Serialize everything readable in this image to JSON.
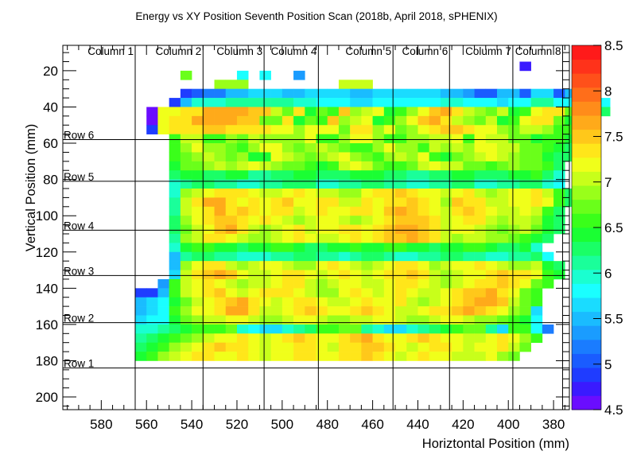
{
  "chart_data": {
    "type": "heatmap",
    "title": "Energy vs XY Position Seventh Position Scan (2018b, April 2018, sPHENIX)",
    "xlabel": "Horiztontal Position (mm)",
    "ylabel": "Vertical Position (mm)",
    "xlim": [
      597,
      373
    ],
    "ylim": [
      6,
      207
    ],
    "x_reversed": true,
    "y_reversed": true,
    "x_ticks": [
      580,
      560,
      540,
      520,
      500,
      480,
      460,
      440,
      420,
      400,
      380
    ],
    "y_ticks": [
      20,
      40,
      60,
      80,
      100,
      120,
      140,
      160,
      180,
      200
    ],
    "zlim": [
      4.5,
      8.5
    ],
    "z_ticks": [
      4.5,
      5,
      5.5,
      6,
      6.5,
      7,
      7.5,
      8,
      8.5
    ],
    "palette": [
      "#6a0dff",
      "#3a1aff",
      "#1f3cff",
      "#1a5cff",
      "#1a7cff",
      "#1a9cff",
      "#1abcff",
      "#1adcff",
      "#1affff",
      "#1affd0",
      "#1aff9a",
      "#1aff66",
      "#1aff33",
      "#3aff1a",
      "#6aff1a",
      "#99ff1a",
      "#c8ff1a",
      "#f0ff1a",
      "#ffe61a",
      "#ffc81a",
      "#ffaa1a",
      "#ff8c1a",
      "#ff6e1a",
      "#ff501a",
      "#ff321a",
      "#ff1a1a"
    ],
    "cell_size_mm": 5,
    "columns": [
      {
        "label": "Column 1",
        "x": 565
      },
      {
        "label": "Column 2",
        "x": 535
      },
      {
        "label": "Column 3",
        "x": 508
      },
      {
        "label": "Column 4",
        "x": 484
      },
      {
        "label": "Column 5",
        "x": 451
      },
      {
        "label": "Column 6",
        "x": 426
      },
      {
        "label": "Column 7",
        "x": 398
      },
      {
        "label": "Column 8",
        "x": 376
      }
    ],
    "rows": [
      {
        "label": "Row 6",
        "y": 58
      },
      {
        "label": "Row 5",
        "y": 81
      },
      {
        "label": "Row 4",
        "y": 108
      },
      {
        "label": "Row 3",
        "y": 133
      },
      {
        "label": "Row 2",
        "y": 159
      },
      {
        "label": "Row 1",
        "y": 184
      }
    ],
    "grid_x_start": 595,
    "grid_y_start": 10,
    "grid": [
      "                                                  ",
      "                                        B         ",
      "          O    I I  F                              ",
      "             PPP        QQQ                         ",
      "          CDEEGGHHHGGHHHHGGHHHHHHGGFDDGGDHHDGG    ",
      "         CGJJJKKKKKKJJIIIHHIIIIIIJJIIIHIIKKIIHII  ",
      "       ARRSSUUUUTTQOSMONTPQRMNPRTUSQPOQMNRSSOMLL  ",
      "       ARSSUUUUTTOOSMONTPQRMNPRTUSQPOQMNRSSOMLL   ",
      "       CRSSSTTSSSSRRPRRROSSPROPRSTTSRRPOQQPNNLL   ",
      "         NQQNNPOQPPPPRNNPRRPNNPPQQRNRQQOOMNNM     ",
      "         NPRPPONPRRPOPQPONNPRPPNQPQPRRQQOONML     ",
      "         NOPQPOPMMRQPOPQRPONPQPRNMOPQRQPOOMLL     ",
      "         MOOPQPQRQPOONMNQRQONNOQRQQOONOPOONL      ",
      "         LMMLLMMKKLLMMLLLMMMLLKKLLMMLLLMMNLJ      ",
      "         JKLLKKJJKKLLLJJKKLLKKJJKKLLJJKKLLJI      ",
      "         JPQRSSSRQQRSRQQPPRSSTSRRQRSQPQRRSQNL     ",
      "         KQSUUSRSRSTRRSSQQSRSSTSRPTSSQQRRSRNL     ",
      "         KQRSUSTSRSSQRSRRSSRTUTSRQSTSRQQRQNL      ",
      "         LPRSTTSRSRQPQRRQPQRSTTTSQRSSQPQQPML      ",
      "         LOQRTUSQPQRSQRRSSRSTUUTSQRRQPOPQOML      ",
      "         KPQSSRQPPQRSRQQRSRSTTUTSQPQQPPONML      ",
      "         JMNNMMLMMNNMLLMMNMMNNMMLMMNNMLLMJ       ",
      "         GKLLKKJJJKKLLKKJKLLKJJKKLLKKJJKKLI      ",
      "         GPRSSQPQRRQPPRSRQPQRSSRPQRRSRQPPQML     ",
      "         HQSTUTRQQRSSRQRSRQRSSTSQPQRRSTSSRNM     ",
      "        FNQRSRQPQQRSSQPQRRQQRSSRQPQRSSTSRON     ",
      "      CCGNQRSTRQRSSSRQPPRSRQRSRQQRSTTUSRON     ",
      "      GHIMOQRSTUSRQRSSRQQRSRRSQPQRSTUUTQON     ",
      "      GHINPRRSUUSQQRSTSRRSTSRQQRSSTUTSRPOH     ",
      "      HIIMOPQQRRQPPQRRQPPQQRRQPPQRRQPPONMI     ",
      "      JJKLMNNNOJIHHJKLNNOOKJHHJKLMNOOKHNNIE    ",
      "      KLMNOPQRRSRQRSTSRRSTUSRRSTSRRQQRSRPN     ",
      "      LMNPQRSTSSRQRRSSRQSSTTSRQRSSRQRRSQO      ",
      "      MNPQRSSRRSRQRRSSRRSSTSRQRSRRQQQRPO        "
    ]
  }
}
